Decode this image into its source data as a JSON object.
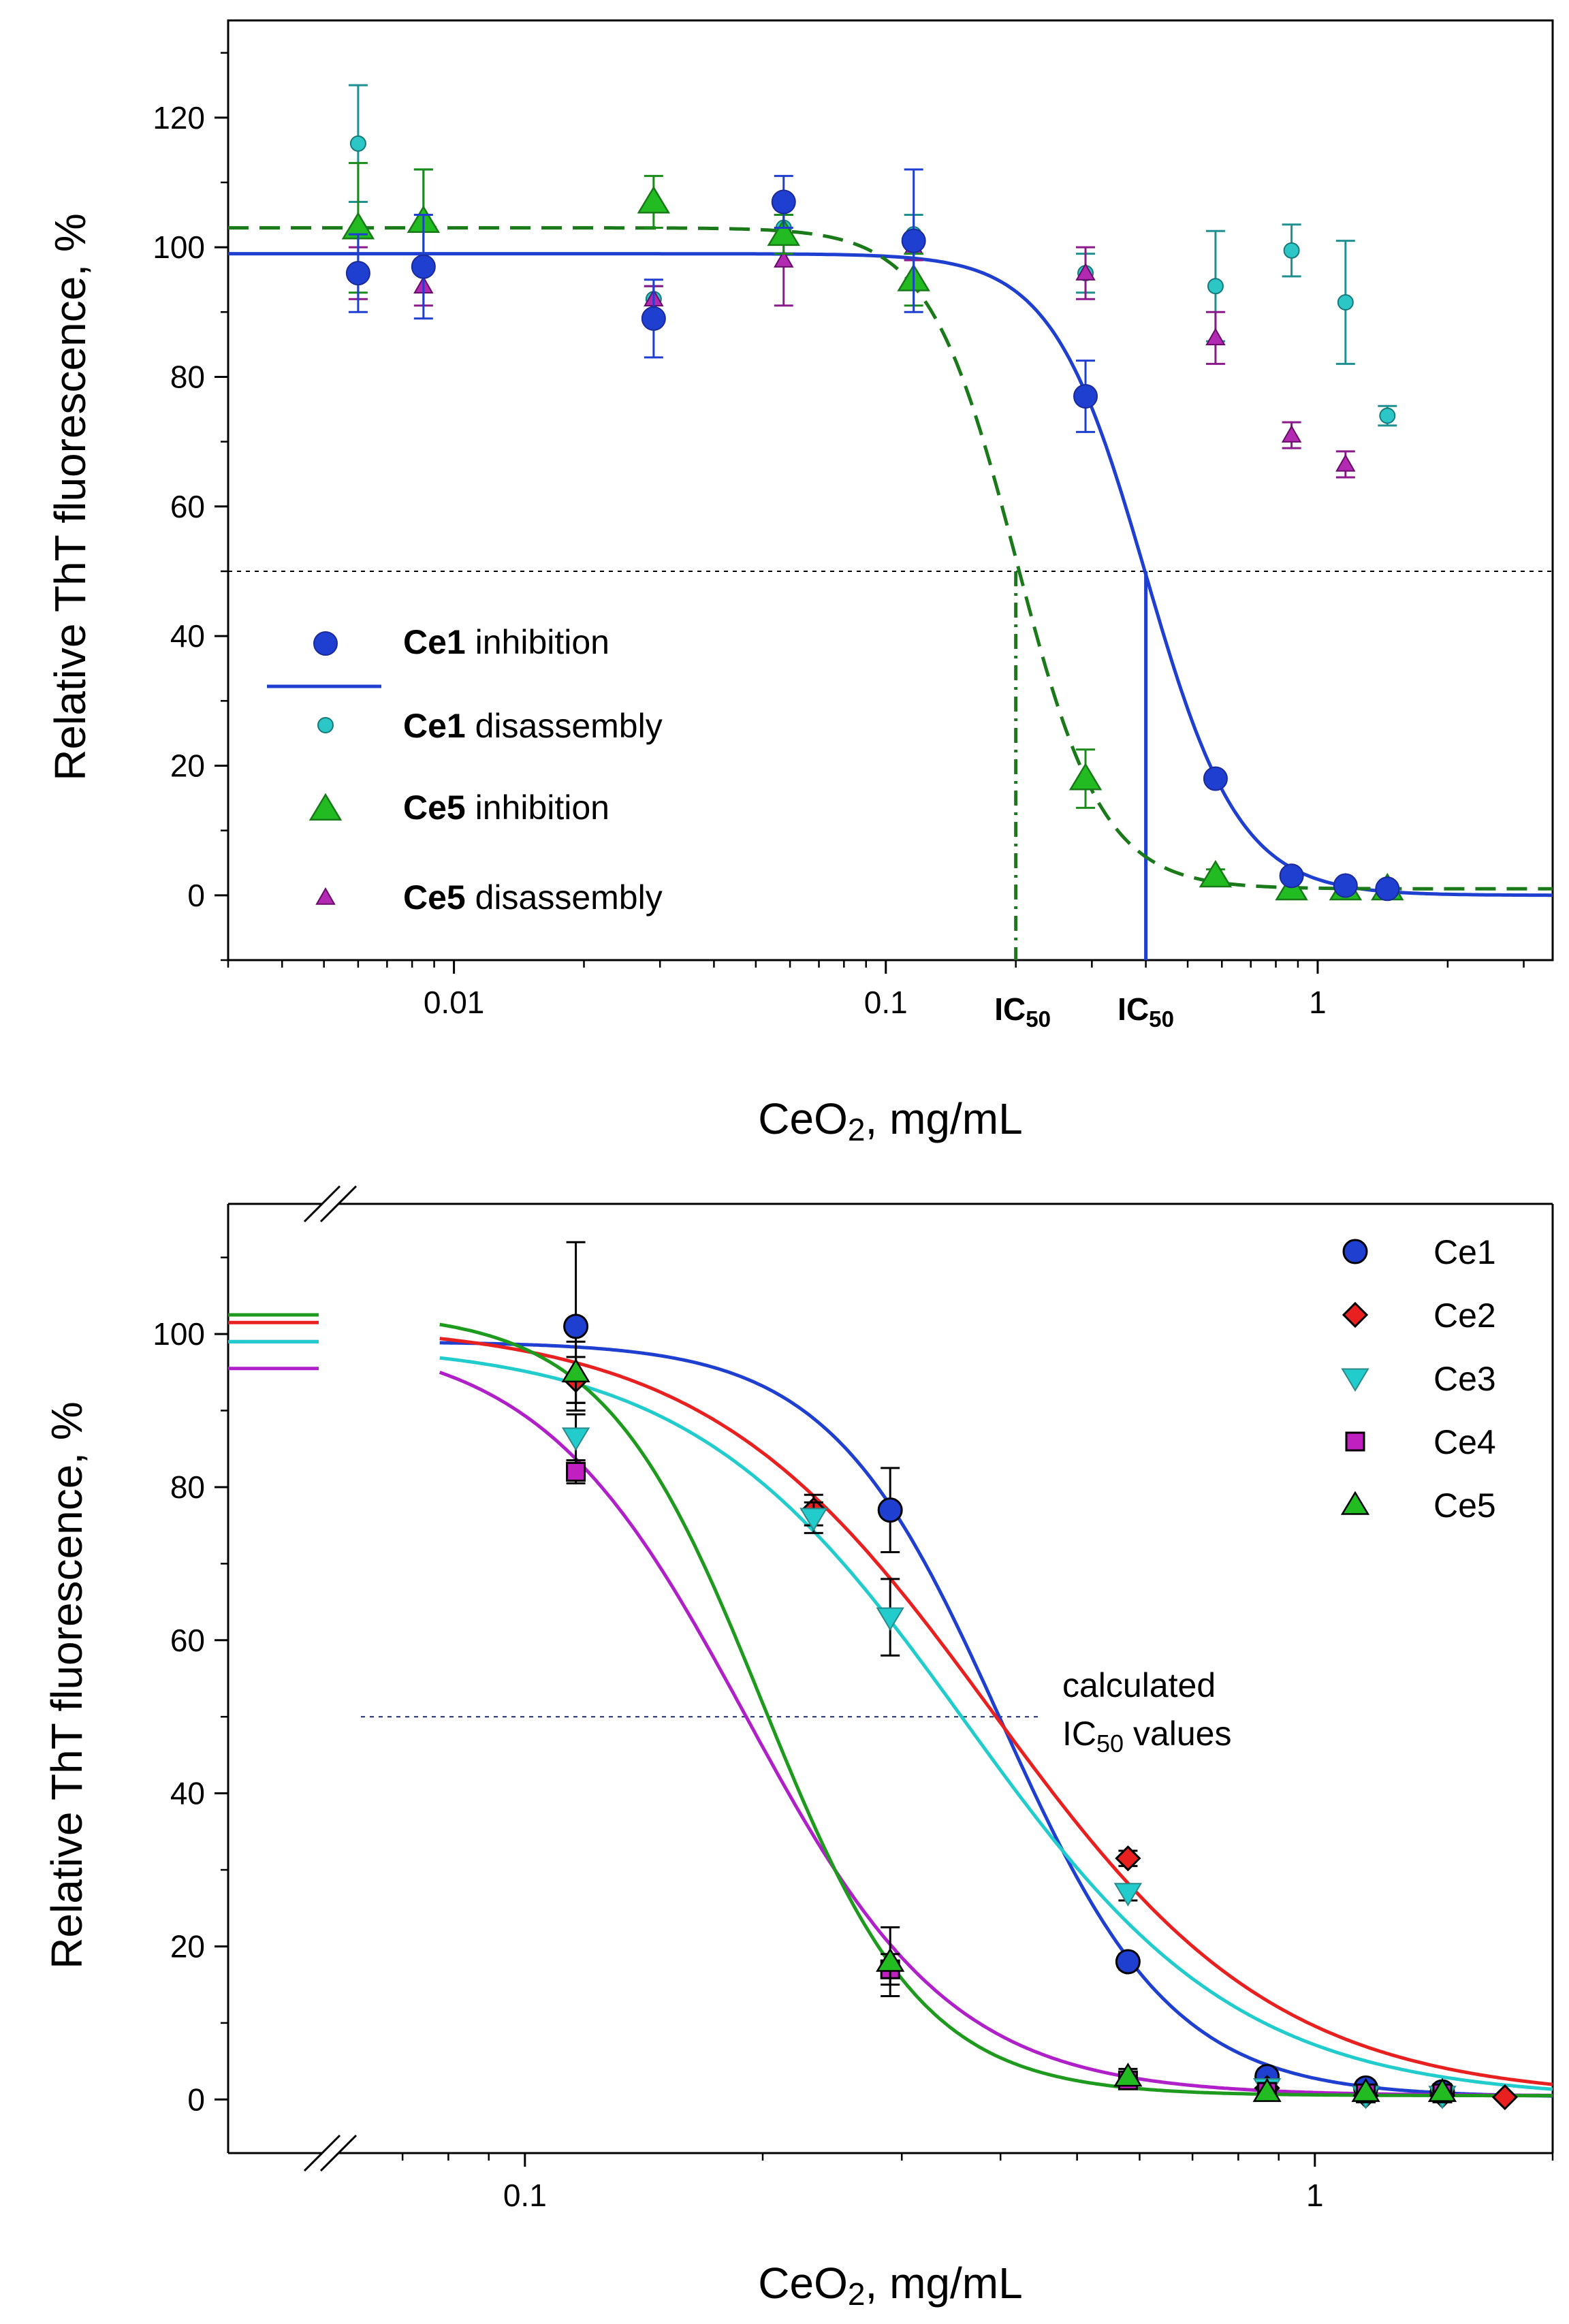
{
  "chart_data": [
    {
      "type": "scatter",
      "title": "",
      "xlabel_main": "CeO",
      "xlabel_sub": "2",
      "xlabel_rest": ", mg/mL",
      "ylabel": "Relative ThT fluorescence, %",
      "xscale": "log",
      "xlim": [
        0.003,
        3.5
      ],
      "ylim": [
        -10,
        135
      ],
      "x_ticks": [
        {
          "value": 0.01,
          "label": "0.01"
        },
        {
          "value": 0.1,
          "label": "0.1"
        },
        {
          "value": 1,
          "label": "1"
        }
      ],
      "y_ticks": [
        {
          "value": 0,
          "label": "0"
        },
        {
          "value": 20,
          "label": "20"
        },
        {
          "value": 40,
          "label": "40"
        },
        {
          "value": 60,
          "label": "60"
        },
        {
          "value": 80,
          "label": "80"
        },
        {
          "value": 100,
          "label": "100"
        },
        {
          "value": 120,
          "label": "120"
        }
      ],
      "reference_line": {
        "y": 50
      },
      "ic50_markers": [
        {
          "x": 0.2,
          "label_main": "IC",
          "label_sub": "50",
          "color": "#1a7a1a",
          "style": "dash-dot"
        },
        {
          "x": 0.4,
          "label_main": "IC",
          "label_sub": "50",
          "color": "#1f3fd0",
          "style": "solid"
        }
      ],
      "fits": [
        {
          "name": "Ce1 fit",
          "top": 99,
          "bottom": 0,
          "ic50": 0.4,
          "hill": 4.0,
          "color": "#1f3fd0",
          "style": "solid"
        },
        {
          "name": "Ce5 fit",
          "top": 103,
          "bottom": 1,
          "ic50": 0.2,
          "hill": 4.3,
          "color": "#1a7a1a",
          "style": "dashed"
        }
      ],
      "series": [
        {
          "name": "Ce1 inhibition",
          "marker": "circle-large",
          "color": "#1f3fd0",
          "err_color": "#1f3fd0",
          "x": [
            0.006,
            0.0085,
            0.029,
            0.058,
            0.116,
            0.29,
            0.58,
            0.87,
            1.16,
            1.45
          ],
          "y": [
            96,
            97,
            89,
            107,
            101,
            77,
            18,
            3,
            1.5,
            1
          ],
          "err": [
            6,
            8,
            6,
            4,
            11,
            5.5,
            1,
            1,
            1,
            1
          ]
        },
        {
          "name": "Ce1 disassembly",
          "marker": "circle-small",
          "color": "#2cc6c6",
          "err_color": "#1f8f8f",
          "x": [
            0.006,
            0.0085,
            0.029,
            0.058,
            0.116,
            0.29,
            0.58,
            0.87,
            1.16,
            1.45
          ],
          "y": [
            116,
            104,
            92,
            103,
            102,
            96,
            94,
            99.5,
            91.5,
            74
          ],
          "err": [
            9,
            8,
            2,
            2,
            3,
            3,
            8.5,
            4,
            9.5,
            1.5
          ]
        },
        {
          "name": "Ce5 inhibition",
          "marker": "triangle-large",
          "color": "#22bb22",
          "err_color": "#1a8a1a",
          "x": [
            0.006,
            0.0085,
            0.029,
            0.058,
            0.116,
            0.29,
            0.58,
            0.87,
            1.16,
            1.45
          ],
          "y": [
            103,
            104,
            107,
            102,
            95,
            18,
            3,
            1,
            1,
            1
          ],
          "err": [
            10,
            8,
            4,
            3,
            4,
            4.5,
            1,
            0.5,
            0.5,
            0.5
          ]
        },
        {
          "name": "Ce5 disassembly",
          "marker": "triangle-small",
          "color": "#b22ab2",
          "err_color": "#8a1a8a",
          "x": [
            0.006,
            0.0085,
            0.029,
            0.058,
            0.116,
            0.29,
            0.58,
            0.87,
            1.16
          ],
          "y": [
            96,
            94,
            92,
            98,
            100,
            96,
            86,
            71,
            66.5
          ],
          "err": [
            4,
            3,
            2,
            7,
            2,
            4,
            4,
            2,
            2
          ]
        }
      ],
      "legend": [
        {
          "bold": "",
          "rest": "",
          "key": "Ce1 inhibition",
          "text": "inhibition",
          "boldtext": "Ce1",
          "symbol": "circle-large",
          "color": "#1f3fd0"
        },
        {
          "bold": "",
          "rest": "",
          "key": "Ce1 line",
          "text": "",
          "boldtext": "",
          "symbol": "line",
          "color": "#1f3fd0"
        },
        {
          "bold": "",
          "rest": "",
          "key": "Ce1 disassembly",
          "text": "disassembly",
          "boldtext": "Ce1",
          "symbol": "circle-small",
          "color": "#2cc6c6"
        },
        {
          "bold": "",
          "rest": "",
          "key": "Ce5 inhibition",
          "text": "inhibition",
          "boldtext": "Ce5",
          "symbol": "triangle-large",
          "color": "#22bb22"
        },
        {
          "bold": "",
          "rest": "",
          "key": "Ce5 disassembly",
          "text": "disassembly",
          "boldtext": "Ce5",
          "symbol": "triangle-small",
          "color": "#b22ab2"
        }
      ],
      "legend_position": "middle-left"
    },
    {
      "type": "scatter",
      "title": "",
      "xlabel_main": "CeO",
      "xlabel_sub": "2",
      "xlabel_rest": ", mg/mL",
      "ylabel": "Relative ThT fluorescence, %",
      "xscale": "log",
      "xlim": [
        0.062,
        2.0
      ],
      "ylim": [
        -7,
        117
      ],
      "x_ticks": [
        {
          "value": 0.1,
          "label": "0.1"
        },
        {
          "value": 1,
          "label": "1"
        }
      ],
      "y_ticks": [
        {
          "value": 0,
          "label": "0"
        },
        {
          "value": 20,
          "label": "20"
        },
        {
          "value": 40,
          "label": "40"
        },
        {
          "value": 60,
          "label": "60"
        },
        {
          "value": 80,
          "label": "80"
        },
        {
          "value": 100,
          "label": "100"
        }
      ],
      "axis_break": "x",
      "reference_line": {
        "y": 50
      },
      "annotation_line1": "calculated",
      "annotation_line2_main": "IC",
      "annotation_line2_sub": "50",
      "annotation_line2_rest": " values",
      "fits": [
        {
          "name": "Ce1 fit",
          "top": 99,
          "bottom": 0.3,
          "ic50": 0.4,
          "hill": 4.0,
          "color": "#1f3fd0",
          "plateau": 99
        },
        {
          "name": "Ce2 fit",
          "top": 101.5,
          "bottom": 0,
          "ic50": 0.39,
          "hill": 2.4,
          "color": "#e82020",
          "plateau": 101.5
        },
        {
          "name": "Ce3 fit",
          "top": 99,
          "bottom": 0,
          "ic50": 0.36,
          "hill": 2.5,
          "color": "#22cccc",
          "plateau": 99
        },
        {
          "name": "Ce4 fit",
          "top": 100,
          "bottom": 0.5,
          "ic50": 0.19,
          "hill": 3.3,
          "color": "#b020c8",
          "plateau": 95.5
        },
        {
          "name": "Ce5 fit",
          "top": 103,
          "bottom": 0.5,
          "ic50": 0.2,
          "hill": 4.3,
          "color": "#1e9a1e",
          "plateau": 102.5
        }
      ],
      "series": [
        {
          "name": "Ce1",
          "marker": "circle",
          "color": "#1f3fd0",
          "x": [
            0.116,
            0.29,
            0.58,
            0.87,
            1.16,
            1.45
          ],
          "y": [
            101,
            77,
            18,
            3,
            1.5,
            1
          ],
          "err": [
            11,
            5.5,
            1,
            1,
            1,
            1
          ]
        },
        {
          "name": "Ce2",
          "marker": "diamond",
          "color": "#e82020",
          "x": [
            0.116,
            0.232,
            0.58,
            0.87,
            1.16,
            1.45,
            1.74
          ],
          "y": [
            94,
            77,
            31.5,
            1.5,
            0.5,
            0.5,
            0.3
          ],
          "err": [
            3,
            2,
            1,
            0.5,
            0.5,
            0.5,
            0.5
          ]
        },
        {
          "name": "Ce3",
          "marker": "triangle-down",
          "color": "#22cccc",
          "x": [
            0.116,
            0.232,
            0.29,
            0.58,
            0.87,
            1.16,
            1.45
          ],
          "y": [
            86.5,
            76,
            63,
            27,
            1.5,
            0.5,
            0.5
          ],
          "err": [
            3,
            2,
            5,
            1,
            0.5,
            0.5,
            0.5
          ]
        },
        {
          "name": "Ce4",
          "marker": "square",
          "color": "#c020c0",
          "x": [
            0.116,
            0.29,
            0.58,
            0.87,
            1.16,
            1.45
          ],
          "y": [
            82,
            17,
            2.5,
            1,
            0.8,
            0.8
          ],
          "err": [
            1.5,
            2,
            0.8,
            0.5,
            0.5,
            0.5
          ]
        },
        {
          "name": "Ce5",
          "marker": "triangle-up",
          "color": "#22bb22",
          "x": [
            0.116,
            0.29,
            0.58,
            0.87,
            1.16,
            1.45
          ],
          "y": [
            95,
            18,
            3,
            1,
            1,
            1
          ],
          "err": [
            4,
            4.5,
            1,
            0.5,
            0.5,
            0.5
          ]
        }
      ],
      "legend_position": "top-right"
    }
  ]
}
